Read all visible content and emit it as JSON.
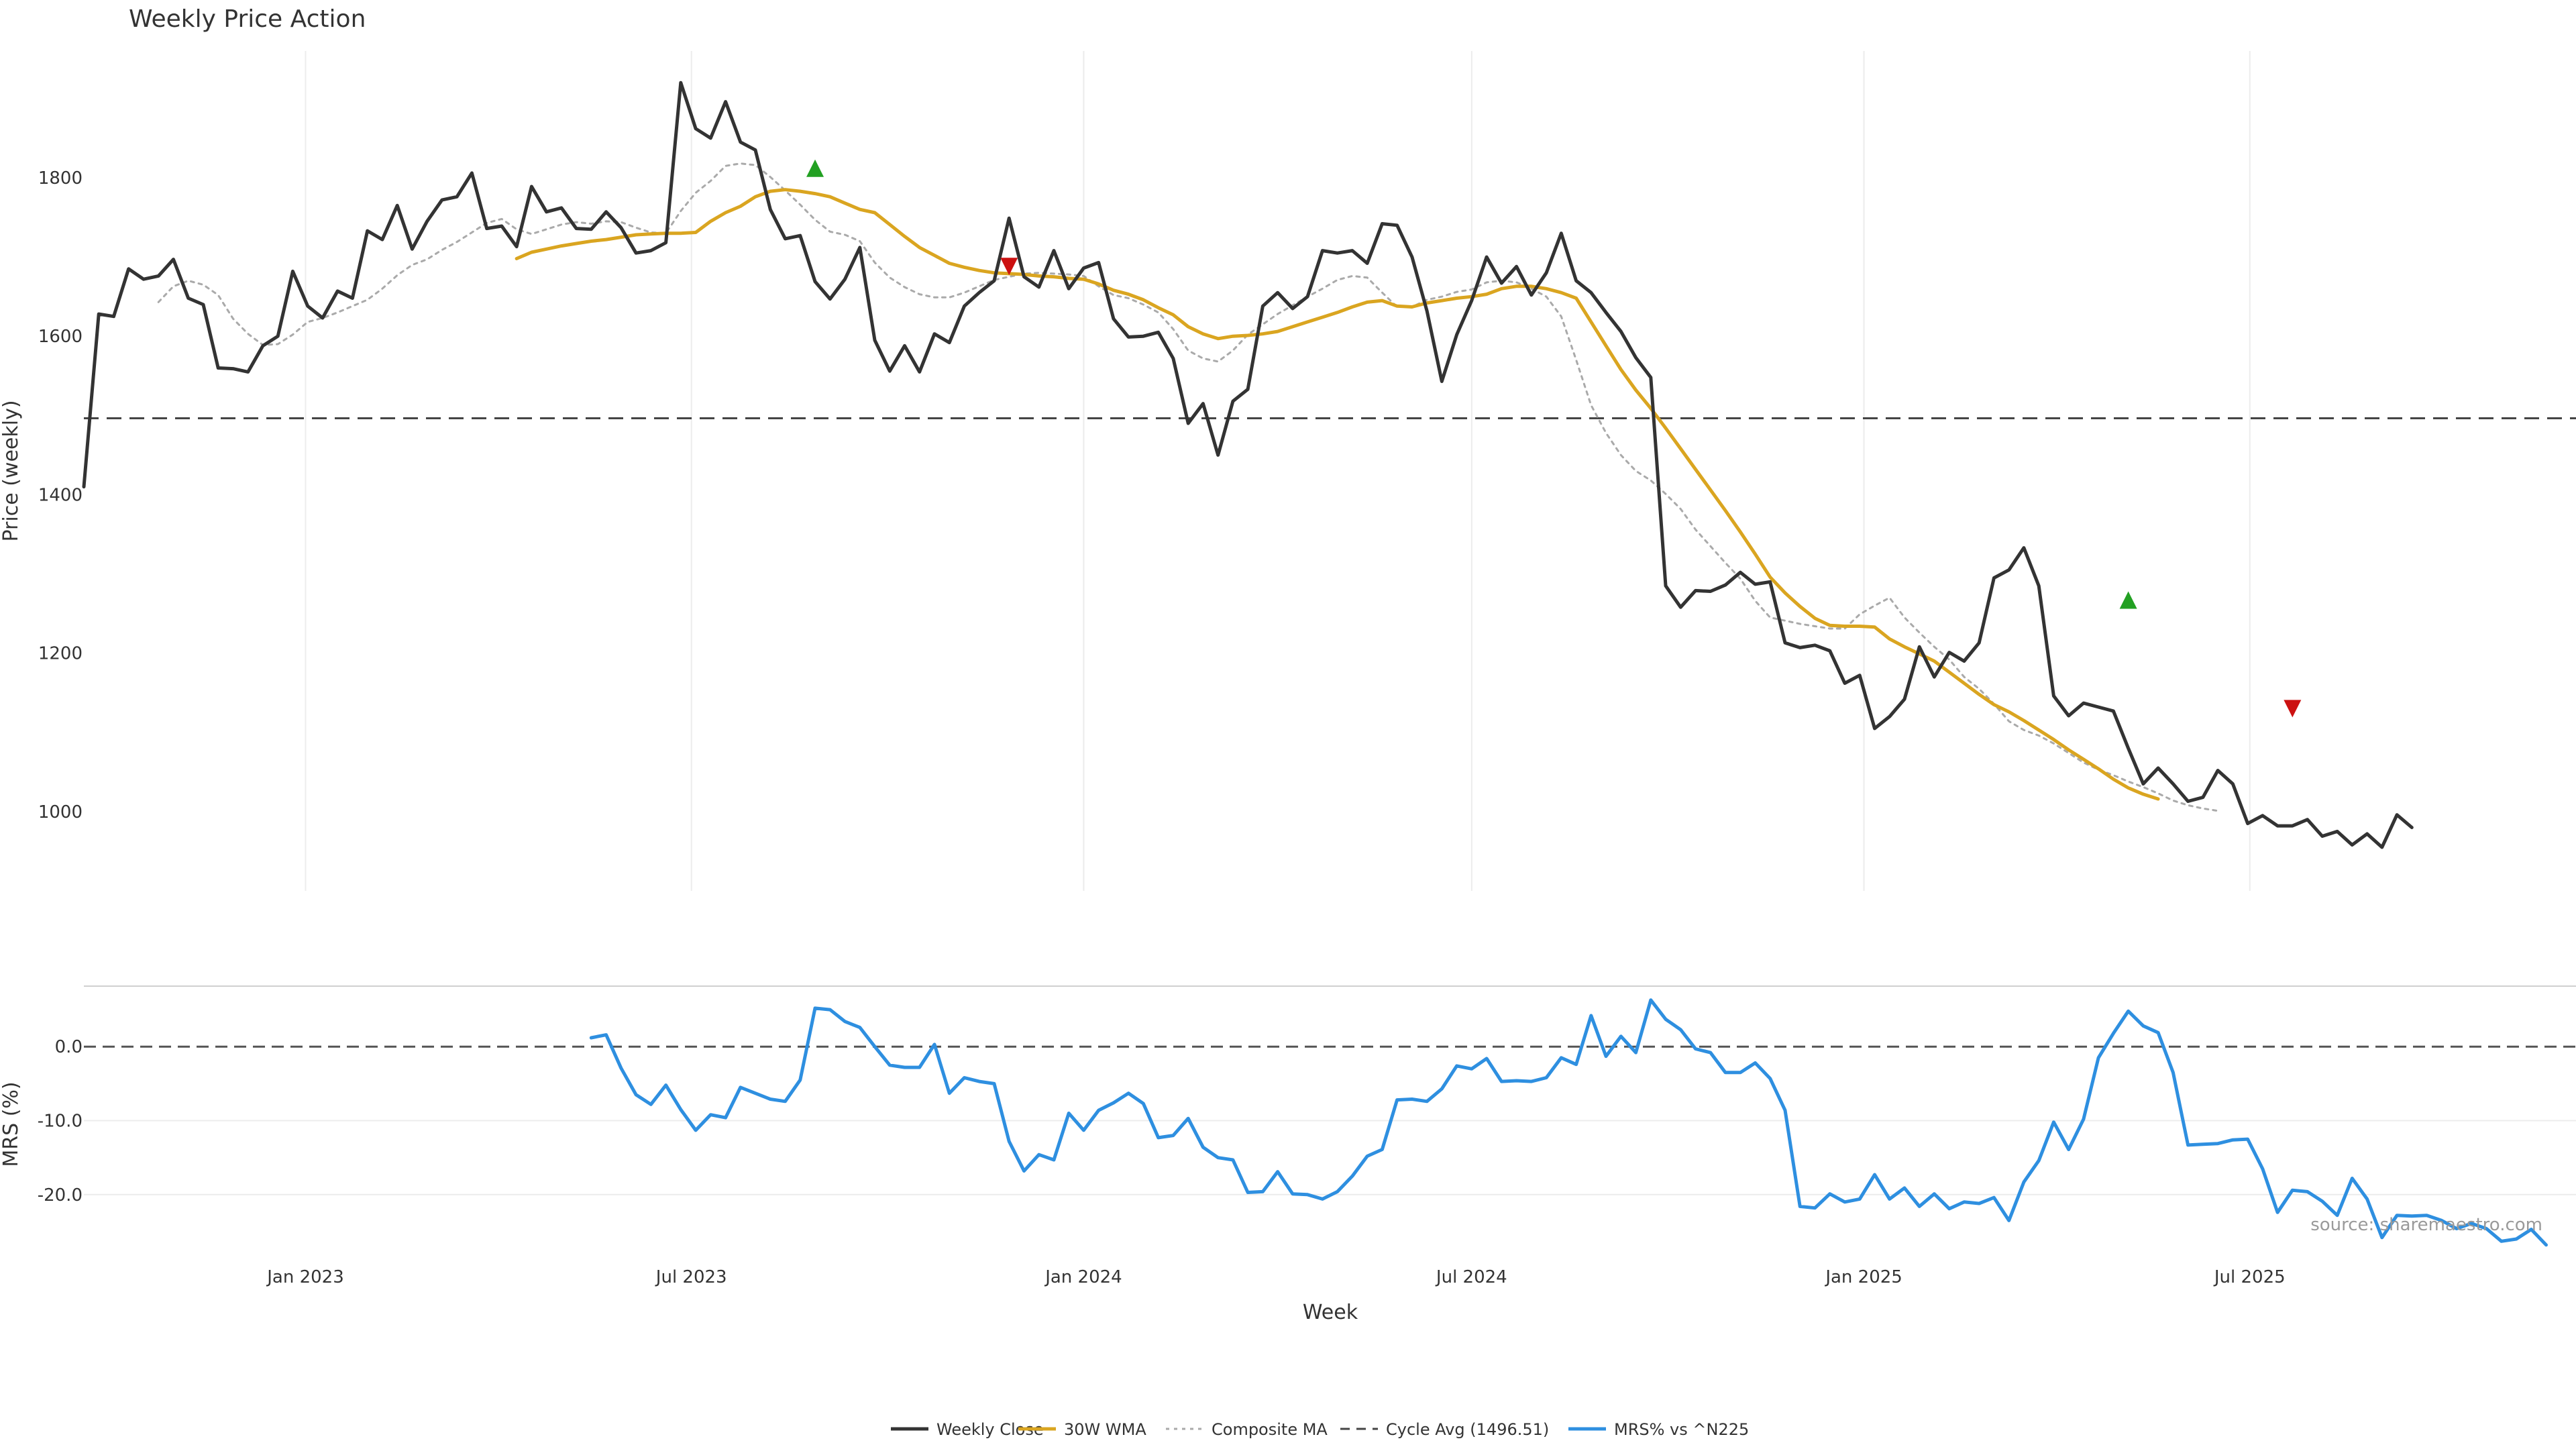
{
  "chart_data": [
    {
      "type": "line",
      "title": "Weekly Price Action",
      "ylabel": "Price (weekly)",
      "xlabel": "Week",
      "ylim": [
        900,
        1960
      ],
      "x_range": [
        "2022-09-19",
        "2025-12-01"
      ],
      "yticks": [
        1000,
        1200,
        1400,
        1600,
        1800
      ],
      "xticks": [
        {
          "date": "2023-01-01",
          "label": "Jan 2023"
        },
        {
          "date": "2023-07-01",
          "label": "Jul 2023"
        },
        {
          "date": "2024-01-01",
          "label": "Jan 2024"
        },
        {
          "date": "2024-07-01",
          "label": "Jul 2024"
        },
        {
          "date": "2025-01-01",
          "label": "Jan 2025"
        },
        {
          "date": "2025-07-01",
          "label": "Jul 2025"
        }
      ],
      "start_date": "2022-09-19",
      "series": [
        {
          "name": "Weekly Close",
          "color": "#333333",
          "style": "solid",
          "values": [
            1410,
            1628,
            1625,
            1685,
            1672,
            1676,
            1697,
            1648,
            1640,
            1560,
            1559,
            1555,
            1588,
            1600,
            1682,
            1638,
            1623,
            1657,
            1648,
            1733,
            1722,
            1765,
            1710,
            1745,
            1772,
            1776,
            1806,
            1736,
            1739,
            1713,
            1789,
            1757,
            1762,
            1736,
            1735,
            1757,
            1737,
            1705,
            1708,
            1718,
            1920,
            1862,
            1850,
            1896,
            1845,
            1835,
            1760,
            1723,
            1727,
            1669,
            1647,
            1672,
            1712,
            1595,
            1556,
            1588,
            1555,
            1603,
            1592,
            1638,
            1655,
            1670,
            1749,
            1675,
            1662,
            1708,
            1660,
            1686,
            1693,
            1622,
            1599,
            1600,
            1605,
            1572,
            1490,
            1515,
            1450,
            1518,
            1533,
            1638,
            1655,
            1635,
            1650,
            1708,
            1705,
            1708,
            1692,
            1742,
            1740,
            1700,
            1632,
            1543,
            1602,
            1645,
            1700,
            1667,
            1688,
            1652,
            1680,
            1730,
            1670,
            1655,
            1630,
            1606,
            1573,
            1548,
            1285,
            1258,
            1279,
            1278,
            1286,
            1302,
            1287,
            1290,
            1213,
            1207,
            1210,
            1203,
            1162,
            1172,
            1105,
            1120,
            1142,
            1208,
            1170,
            1201,
            1190,
            1213,
            1295,
            1305,
            1333,
            1285,
            1146,
            1121,
            1137,
            1132,
            1127,
            1080,
            1035,
            1055,
            1035,
            1013,
            1018,
            1052,
            1035,
            985,
            995,
            982,
            982,
            990,
            969,
            975,
            958,
            972,
            955,
            996,
            980
          ]
        },
        {
          "name": "30W WMA",
          "color": "#DAA520",
          "style": "solid",
          "offset": 29,
          "values": [
            1698,
            1706,
            1710,
            1714,
            1717,
            1720,
            1722,
            1725,
            1728,
            1729,
            1730,
            1730,
            1731,
            1745,
            1756,
            1764,
            1776,
            1783,
            1785,
            1783,
            1780,
            1776,
            1768,
            1760,
            1756,
            1741,
            1726,
            1712,
            1702,
            1692,
            1687,
            1683,
            1680,
            1679,
            1678,
            1676,
            1675,
            1673,
            1672,
            1666,
            1658,
            1653,
            1646,
            1636,
            1627,
            1612,
            1603,
            1597,
            1600,
            1601,
            1603,
            1606,
            1612,
            1618,
            1624,
            1630,
            1637,
            1643,
            1645,
            1638,
            1637,
            1642,
            1645,
            1648,
            1650,
            1653,
            1660,
            1663,
            1663,
            1660,
            1655,
            1648,
            1618,
            1588,
            1558,
            1532,
            1509,
            1484,
            1458,
            1432,
            1406,
            1380,
            1353,
            1325,
            1296,
            1276,
            1259,
            1244,
            1235,
            1234,
            1234,
            1233,
            1218,
            1208,
            1199,
            1190,
            1176,
            1162,
            1148,
            1135,
            1126,
            1115,
            1103,
            1091,
            1078,
            1066,
            1054,
            1041,
            1030,
            1022,
            1016
          ]
        },
        {
          "name": "Composite MA",
          "color": "#AAAAAA",
          "style": "dotted",
          "offset": 5,
          "values": [
            1643,
            1663,
            1670,
            1665,
            1652,
            1622,
            1603,
            1589,
            1590,
            1602,
            1618,
            1623,
            1630,
            1638,
            1646,
            1660,
            1677,
            1690,
            1697,
            1709,
            1719,
            1731,
            1743,
            1748,
            1735,
            1729,
            1735,
            1741,
            1744,
            1742,
            1745,
            1744,
            1737,
            1731,
            1730,
            1758,
            1781,
            1796,
            1815,
            1818,
            1816,
            1801,
            1784,
            1766,
            1747,
            1732,
            1728,
            1720,
            1693,
            1674,
            1662,
            1653,
            1649,
            1649,
            1655,
            1663,
            1671,
            1675,
            1679,
            1680,
            1679,
            1678,
            1676,
            1663,
            1652,
            1648,
            1640,
            1630,
            1609,
            1582,
            1572,
            1568,
            1582,
            1602,
            1615,
            1628,
            1639,
            1650,
            1660,
            1671,
            1676,
            1674,
            1655,
            1637,
            1637,
            1646,
            1650,
            1656,
            1659,
            1668,
            1670,
            1668,
            1660,
            1650,
            1625,
            1570,
            1513,
            1478,
            1450,
            1430,
            1418,
            1401,
            1382,
            1356,
            1335,
            1314,
            1294,
            1266,
            1245,
            1241,
            1237,
            1234,
            1231,
            1231,
            1249,
            1260,
            1270,
            1245,
            1226,
            1208,
            1192,
            1170,
            1155,
            1136,
            1114,
            1103,
            1096,
            1086,
            1074,
            1062,
            1053,
            1046,
            1038,
            1031,
            1023,
            1014,
            1008,
            1004,
            1001
          ]
        },
        {
          "name": "Cycle Avg (1496.51)",
          "color": "#444444",
          "style": "dashed",
          "value": 1496.51
        }
      ],
      "markers": [
        {
          "type": "buy",
          "date": "2023-08-28",
          "value": 1812,
          "color": "#22A022"
        },
        {
          "type": "sell",
          "date": "2023-11-27",
          "value": 1688,
          "color": "#CC1111"
        },
        {
          "type": "buy",
          "date": "2025-05-05",
          "value": 1267,
          "color": "#22A022"
        },
        {
          "type": "sell",
          "date": "2025-07-21",
          "value": 1130,
          "color": "#CC1111"
        }
      ]
    },
    {
      "type": "line",
      "title": "",
      "ylabel": "MRS (%)",
      "ylim": [
        -27,
        8
      ],
      "yticks": [
        0.0,
        -10.0,
        -20.0
      ],
      "ytick_labels": [
        "0.0",
        "-10.0",
        "-20.0"
      ],
      "series": [
        {
          "name": "MRS% vs ^N225",
          "color": "#2E8FE0",
          "style": "solid",
          "offset": 34,
          "values": [
            1.2,
            1.6,
            -2.9,
            -6.5,
            -7.8,
            -5.2,
            -8.5,
            -11.3,
            -9.2,
            -9.6,
            -5.5,
            -6.3,
            -7.1,
            -7.4,
            -4.5,
            5.2,
            5.0,
            3.4,
            2.6,
            0.0,
            -2.5,
            -2.8,
            -2.8,
            0.3,
            -6.3,
            -4.2,
            -4.7,
            -5.0,
            -12.8,
            -16.8,
            -14.6,
            -15.3,
            -9.0,
            -11.3,
            -8.6,
            -7.6,
            -6.3,
            -7.7,
            -12.3,
            -12.0,
            -9.7,
            -13.6,
            -15.0,
            -15.3,
            -19.7,
            -19.6,
            -16.9,
            -19.9,
            -20.0,
            -20.6,
            -19.6,
            -17.5,
            -14.8,
            -13.9,
            -7.2,
            -7.1,
            -7.4,
            -5.7,
            -2.6,
            -3.0,
            -1.6,
            -4.7,
            -4.6,
            -4.7,
            -4.2,
            -1.5,
            -2.4,
            4.2,
            -1.3,
            1.4,
            -0.8,
            6.3,
            3.7,
            2.3,
            -0.3,
            -0.8,
            -3.5,
            -3.5,
            -2.2,
            -4.3,
            -8.6,
            -21.6,
            -21.8,
            -19.9,
            -21.0,
            -20.6,
            -17.3,
            -20.6,
            -19.1,
            -21.6,
            -19.9,
            -21.9,
            -21.0,
            -21.2,
            -20.4,
            -23.5,
            -18.3,
            -15.4,
            -10.2,
            -13.9,
            -9.8,
            -1.5,
            1.8,
            4.8,
            2.8,
            1.9,
            -3.5,
            -13.3,
            -13.2,
            -13.1,
            -12.6,
            -12.5,
            -16.5,
            -22.4,
            -19.4,
            -19.6,
            -20.9,
            -22.8,
            -17.8,
            -20.6,
            -25.8,
            -22.8,
            -22.9,
            -22.8,
            -23.5,
            -24.6,
            -23.9,
            -24.6,
            -26.3,
            -26.0,
            -24.7,
            -26.8
          ]
        }
      ]
    }
  ],
  "legend": [
    {
      "label": "Weekly Close",
      "style": "solid",
      "color": "#333333"
    },
    {
      "label": "30W WMA",
      "style": "solid",
      "color": "#DAA520"
    },
    {
      "label": "Composite MA",
      "style": "dotted",
      "color": "#AAAAAA"
    },
    {
      "label": "Cycle Avg (1496.51)",
      "style": "dashed",
      "color": "#444444"
    },
    {
      "label": "MRS% vs ^N225",
      "style": "solid",
      "color": "#2E8FE0"
    }
  ],
  "source_text": "source: sharemaestro.com"
}
